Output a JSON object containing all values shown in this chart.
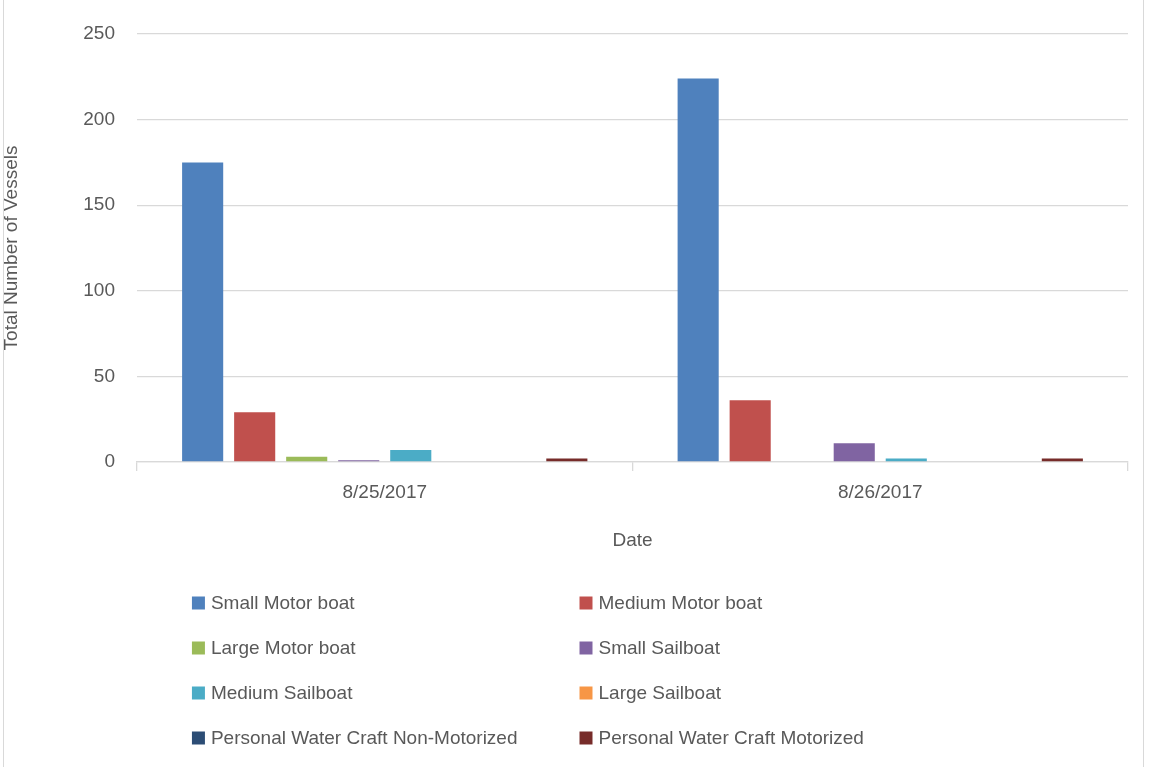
{
  "chart_data": {
    "type": "bar",
    "categories": [
      "8/25/2017",
      "8/26/2017"
    ],
    "xlabel": "Date",
    "ylabel": "Total Number of Vessels",
    "ylim": [
      0,
      250
    ],
    "yticks": [
      0,
      50,
      100,
      150,
      200,
      250
    ],
    "grid": "y",
    "legend": "bottom",
    "series": [
      {
        "name": "Small Motor boat",
        "color": "#4f81bd",
        "values": [
          175,
          224
        ]
      },
      {
        "name": "Medium Motor boat",
        "color": "#c0504d",
        "values": [
          29,
          36
        ]
      },
      {
        "name": "Large Motor boat",
        "color": "#9bbb59",
        "values": [
          3,
          0
        ]
      },
      {
        "name": "Small Sailboat",
        "color": "#8064a2",
        "values": [
          1,
          11
        ]
      },
      {
        "name": "Medium Sailboat",
        "color": "#4bacc6",
        "values": [
          7,
          2
        ]
      },
      {
        "name": "Large Sailboat",
        "color": "#f79646",
        "values": [
          0,
          0
        ]
      },
      {
        "name": "Personal Water Craft Non-Motorized",
        "color": "#2c4d75",
        "values": [
          0,
          0
        ]
      },
      {
        "name": "Personal Water Craft Motorized",
        "color": "#772c2a",
        "values": [
          2,
          2
        ]
      }
    ]
  }
}
